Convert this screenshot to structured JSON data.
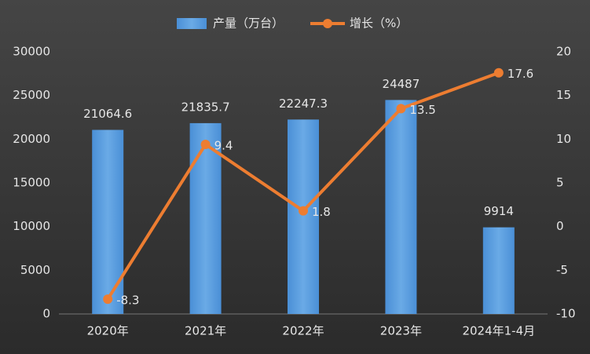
{
  "chart_data": {
    "type": "bar",
    "categories": [
      "2020年",
      "2021年",
      "2022年",
      "2023年",
      "2024年1-4月"
    ],
    "series": [
      {
        "name": "产量（万台）",
        "type": "bar",
        "color": "#5b9bd5",
        "values": [
          21064.6,
          21835.7,
          22247.3,
          24487,
          9914
        ]
      },
      {
        "name": "增长（%）",
        "type": "line",
        "axis": "y2",
        "color": "#ed7d31",
        "values": [
          -8.3,
          9.4,
          1.8,
          13.5,
          17.6
        ]
      }
    ],
    "ylim": [
      0,
      30000
    ],
    "yticks": [
      0,
      5000,
      10000,
      15000,
      20000,
      25000,
      30000
    ],
    "y2lim": [
      -10,
      20
    ],
    "y2ticks": [
      -10,
      -5,
      0,
      5,
      10,
      15,
      20
    ],
    "grid": false,
    "legend": "top"
  }
}
